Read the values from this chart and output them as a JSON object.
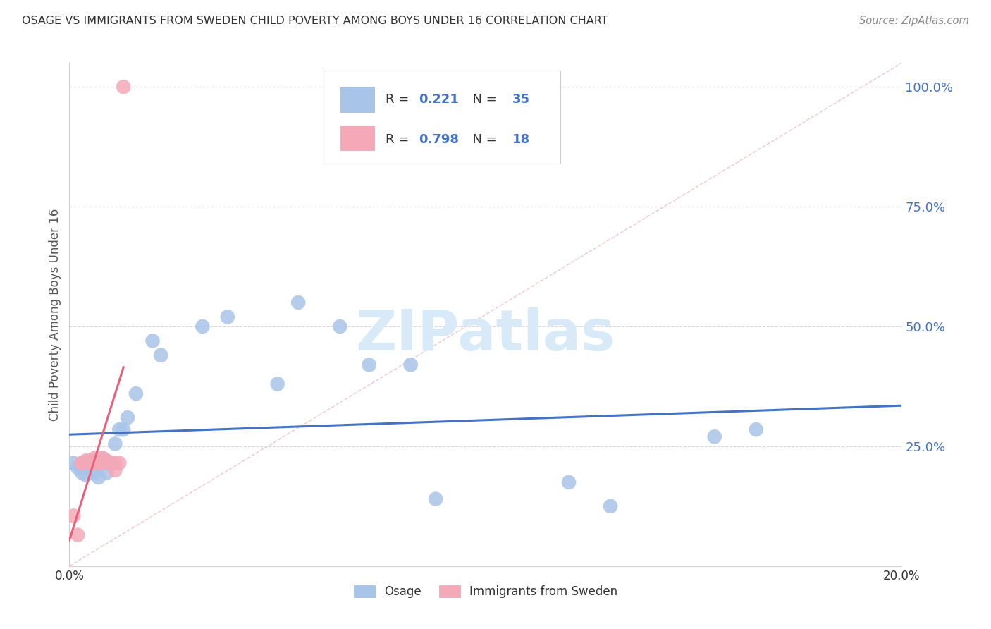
{
  "title": "OSAGE VS IMMIGRANTS FROM SWEDEN CHILD POVERTY AMONG BOYS UNDER 16 CORRELATION CHART",
  "source": "Source: ZipAtlas.com",
  "ylabel": "Child Poverty Among Boys Under 16",
  "xlim": [
    0.0,
    0.2
  ],
  "ylim": [
    0.0,
    1.05
  ],
  "xticks": [
    0.0,
    0.04,
    0.08,
    0.12,
    0.16,
    0.2
  ],
  "xticklabels": [
    "0.0%",
    "",
    "",
    "",
    "",
    "20.0%"
  ],
  "yticks_right": [
    0.0,
    0.25,
    0.5,
    0.75,
    1.0
  ],
  "yticklabels_right": [
    "",
    "25.0%",
    "50.0%",
    "75.0%",
    "100.0%"
  ],
  "osage_R": 0.221,
  "osage_N": 35,
  "sweden_R": 0.798,
  "sweden_N": 18,
  "osage_color": "#a8c4e8",
  "sweden_color": "#f4a8b8",
  "osage_line_color": "#4472c4",
  "sweden_line_color": "#e8607a",
  "diag_color": "#f0c0c8",
  "watermark": "ZIPatlas",
  "watermark_color": "#d8eaf8",
  "osage_x": [
    0.001,
    0.002,
    0.003,
    0.003,
    0.004,
    0.004,
    0.005,
    0.005,
    0.006,
    0.006,
    0.007,
    0.007,
    0.008,
    0.009,
    0.009,
    0.01,
    0.011,
    0.012,
    0.013,
    0.014,
    0.016,
    0.02,
    0.022,
    0.032,
    0.038,
    0.05,
    0.055,
    0.065,
    0.072,
    0.082,
    0.088,
    0.12,
    0.13,
    0.155,
    0.165
  ],
  "osage_y": [
    0.215,
    0.205,
    0.21,
    0.195,
    0.205,
    0.19,
    0.215,
    0.2,
    0.22,
    0.195,
    0.21,
    0.185,
    0.225,
    0.195,
    0.215,
    0.215,
    0.255,
    0.285,
    0.285,
    0.31,
    0.36,
    0.47,
    0.44,
    0.5,
    0.52,
    0.38,
    0.55,
    0.5,
    0.42,
    0.42,
    0.14,
    0.175,
    0.125,
    0.27,
    0.285
  ],
  "sweden_x": [
    0.001,
    0.002,
    0.003,
    0.003,
    0.004,
    0.005,
    0.005,
    0.006,
    0.006,
    0.007,
    0.008,
    0.008,
    0.009,
    0.01,
    0.011,
    0.011,
    0.012,
    0.013
  ],
  "sweden_y": [
    0.105,
    0.065,
    0.215,
    0.215,
    0.22,
    0.22,
    0.215,
    0.225,
    0.215,
    0.215,
    0.215,
    0.225,
    0.22,
    0.215,
    0.2,
    0.215,
    0.215,
    1.0
  ],
  "background_color": "#ffffff",
  "grid_color": "#d8d8d8",
  "title_color": "#333333",
  "axis_label_color": "#555555",
  "right_tick_color": "#4472c4",
  "legend_text_color": "#333333",
  "legend_value_color": "#4472c4"
}
